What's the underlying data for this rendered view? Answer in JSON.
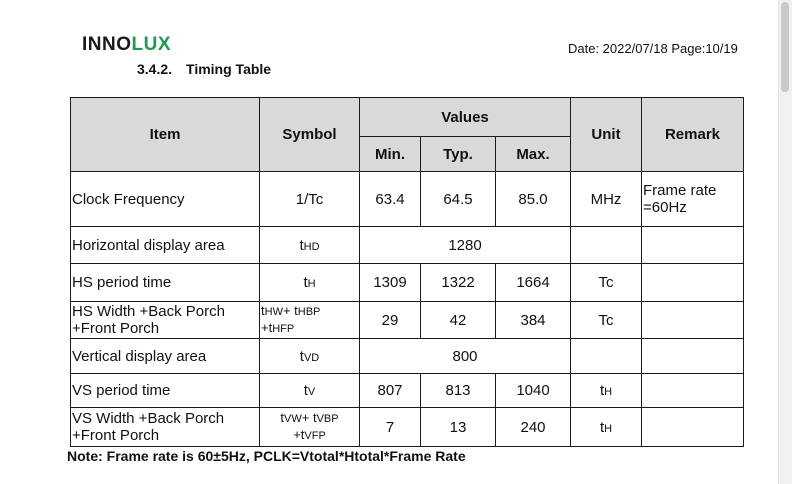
{
  "header": {
    "logo_main": "INNO",
    "logo_accent": "LUX",
    "date_page": "Date: 2022/07/18 Page:10/19",
    "section_number": "3.4.2.",
    "section_title": "Timing Table",
    "accent_color": "#1e9a4e"
  },
  "table": {
    "headers": {
      "item": "Item",
      "symbol": "Symbol",
      "values": "Values",
      "min": "Min.",
      "typ": "Typ.",
      "max": "Max.",
      "unit": "Unit",
      "remark": "Remark"
    },
    "header_bg": "#d9d9d9",
    "rows": [
      {
        "item": "Clock Frequency",
        "symbol": "1/Tc",
        "min": "63.4",
        "typ": "64.5",
        "max": "85.0",
        "unit": "MHz",
        "remark_l1": "Frame rate",
        "remark_l2": "=60Hz"
      },
      {
        "item": "Horizontal display area",
        "symbol_a": "t",
        "symbol_a_sub": "HD",
        "value": "1280"
      },
      {
        "item": "HS period time",
        "symbol_a": "t",
        "symbol_a_sub": "H",
        "min": "1309",
        "typ": "1322",
        "max": "1664",
        "unit": "Tc"
      },
      {
        "item_l1": "HS Width +Back Porch",
        "item_l2": "+Front Porch",
        "sym_l1_a": "t",
        "sym_l1_a_sub": "HW",
        "sym_l1_b": "+ t",
        "sym_l1_b_sub": "HBP",
        "sym_l2_a": "+t",
        "sym_l2_a_sub": "HFP",
        "min": "29",
        "typ": "42",
        "max": "384",
        "unit": "Tc"
      },
      {
        "item": "Vertical display area",
        "symbol_a": "t",
        "symbol_a_sub": "VD",
        "value": "800"
      },
      {
        "item": "VS period time",
        "symbol_a": "t",
        "symbol_a_sub": "V",
        "min": "807",
        "typ": "813",
        "max": "1040",
        "unit_a": "t",
        "unit_a_sub": "H"
      },
      {
        "item_l1": "VS Width +Back Porch",
        "item_l2": "+Front Porch",
        "sym_l1_a": "t",
        "sym_l1_a_sub": "VW",
        "sym_l1_b": "+ t",
        "sym_l1_b_sub": "VBP",
        "sym_l2_a": "+t",
        "sym_l2_a_sub": "VFP",
        "min": "7",
        "typ": "13",
        "max": "240",
        "unit_a": "t",
        "unit_a_sub": "H"
      }
    ]
  },
  "note": "Note: Frame rate is 60±5Hz, PCLK=Vtotal*Htotal*Frame Rate"
}
